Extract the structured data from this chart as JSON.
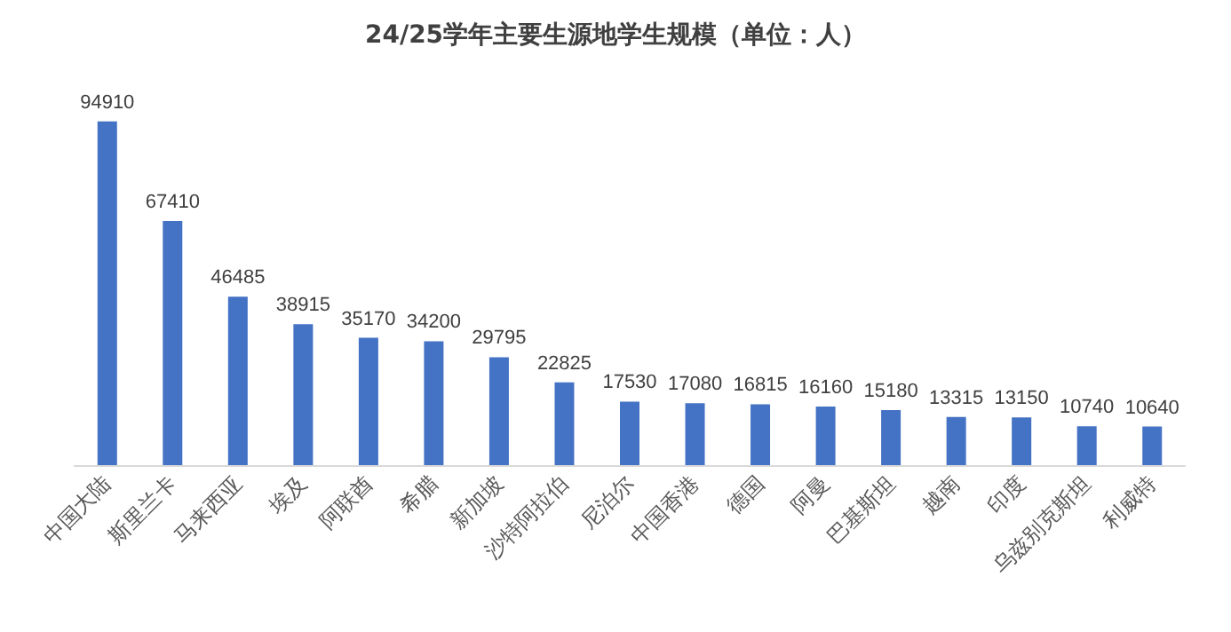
{
  "chart_data": {
    "type": "bar",
    "title": "24/25学年主要生源地学生规模（单位：人）",
    "categories": [
      "中国大陆",
      "斯里兰卡",
      "马来西亚",
      "埃及",
      "阿联酋",
      "希腊",
      "新加坡",
      "沙特阿拉伯",
      "尼泊尔",
      "中国香港",
      "德国",
      "阿曼",
      "巴基斯坦",
      "越南",
      "印度",
      "乌兹别克斯坦",
      "利威特"
    ],
    "values": [
      94910,
      67410,
      46485,
      38915,
      35170,
      34200,
      29795,
      22825,
      17530,
      17080,
      16815,
      16160,
      15180,
      13315,
      13150,
      10740,
      10640
    ],
    "color": "#4472c4",
    "data_labels": true,
    "tick_labels": "x"
  }
}
